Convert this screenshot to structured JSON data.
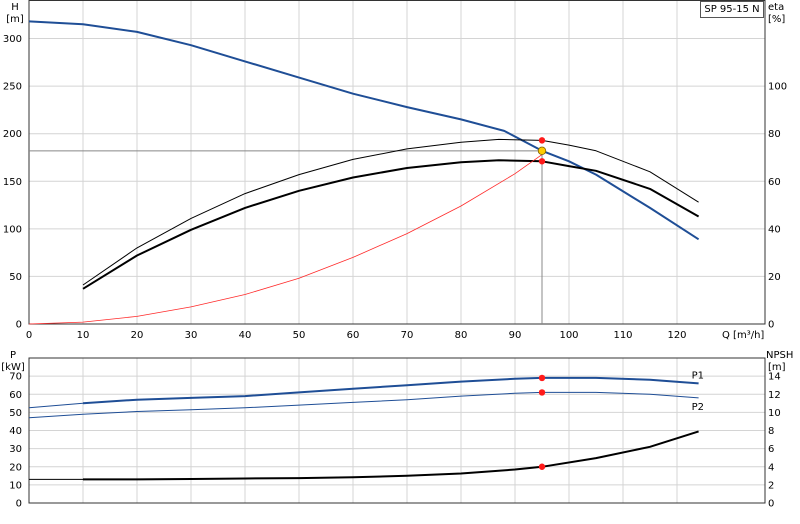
{
  "model_label": "SP 95-15 N",
  "chart_data": [
    {
      "type": "line",
      "name": "pump-curves",
      "y_left": {
        "label": "H",
        "unit": "[m]",
        "range": [
          0,
          340
        ],
        "ticks": [
          0,
          50,
          100,
          150,
          200,
          250,
          300
        ]
      },
      "y_right": {
        "label": "eta",
        "unit": "[%]",
        "ticks": [
          0,
          20,
          40,
          60,
          80,
          100
        ],
        "ratio_to_left": 2.5
      },
      "x_axis": {
        "label": "Q [m³/h]",
        "range": [
          0,
          124
        ],
        "ticks": [
          0,
          10,
          20,
          30,
          40,
          50,
          60,
          70,
          80,
          90,
          100,
          110,
          120
        ]
      },
      "grid": true,
      "series": [
        {
          "key": "H",
          "color": "#1f4e96",
          "width": 2,
          "points": [
            [
              0,
              318
            ],
            [
              10,
              315
            ],
            [
              20,
              307
            ],
            [
              30,
              293
            ],
            [
              40,
              276
            ],
            [
              50,
              259
            ],
            [
              60,
              242
            ],
            [
              70,
              228
            ],
            [
              80,
              215
            ],
            [
              88,
              203
            ],
            [
              95,
              182
            ],
            [
              100,
              171
            ],
            [
              105,
              157
            ],
            [
              115,
              122
            ],
            [
              124,
              89
            ]
          ]
        },
        {
          "key": "eta_thick",
          "color": "#000000",
          "width": 2,
          "points": [
            [
              10,
              37
            ],
            [
              20,
              72
            ],
            [
              30,
              99
            ],
            [
              40,
              122
            ],
            [
              50,
              140
            ],
            [
              60,
              154
            ],
            [
              70,
              164
            ],
            [
              80,
              170
            ],
            [
              87,
              172
            ],
            [
              95,
              171
            ],
            [
              100,
              166
            ],
            [
              105,
              161
            ],
            [
              115,
              142
            ],
            [
              124,
              113
            ]
          ]
        },
        {
          "key": "eta_thin",
          "color": "#000000",
          "width": 1,
          "points": [
            [
              10,
              41
            ],
            [
              20,
              80
            ],
            [
              30,
              111
            ],
            [
              40,
              137
            ],
            [
              50,
              157
            ],
            [
              60,
              173
            ],
            [
              70,
              184
            ],
            [
              80,
              191
            ],
            [
              87,
              194
            ],
            [
              95,
              193
            ],
            [
              100,
              188
            ],
            [
              105,
              182
            ],
            [
              115,
              160
            ],
            [
              124,
              128
            ]
          ]
        },
        {
          "key": "system",
          "color": "#ff2a2a",
          "width": 0.8,
          "points": [
            [
              0,
              0
            ],
            [
              10,
              2
            ],
            [
              20,
              8
            ],
            [
              30,
              18
            ],
            [
              40,
              31
            ],
            [
              50,
              48
            ],
            [
              60,
              70
            ],
            [
              70,
              95
            ],
            [
              80,
              124
            ],
            [
              90,
              158
            ],
            [
              95,
              178
            ]
          ]
        }
      ],
      "duty_point": {
        "q": 95,
        "h": 182
      },
      "markers": [
        [
          95,
          193
        ],
        [
          95,
          171
        ]
      ]
    },
    {
      "type": "line",
      "name": "power-npsh",
      "y_left": {
        "label": "P",
        "unit": "[kW]",
        "range": [
          0,
          80
        ],
        "ticks": [
          0,
          10,
          20,
          30,
          40,
          50,
          60,
          70
        ]
      },
      "y_right": {
        "label": "NPSH",
        "unit": "[m]",
        "range": [
          0,
          16
        ],
        "ticks": [
          0,
          2,
          4,
          6,
          8,
          10,
          12,
          14
        ]
      },
      "x_axis": {
        "range": [
          0,
          124
        ],
        "ticks": [
          0,
          10,
          20,
          30,
          40,
          50,
          60,
          70,
          80,
          90,
          100,
          110,
          120
        ]
      },
      "grid": true,
      "series": [
        {
          "key": "P1",
          "name": "P1",
          "color": "#1f4e96",
          "width": 2,
          "points": [
            [
              10,
              55
            ],
            [
              20,
              57
            ],
            [
              30,
              58
            ],
            [
              40,
              59
            ],
            [
              50,
              61
            ],
            [
              60,
              63
            ],
            [
              70,
              65
            ],
            [
              80,
              67
            ],
            [
              90,
              68.5
            ],
            [
              95,
              69
            ],
            [
              105,
              69
            ],
            [
              115,
              68
            ],
            [
              124,
              66
            ]
          ]
        },
        {
          "key": "P2",
          "name": "P2",
          "color": "#1f4e96",
          "width": 1,
          "points": [
            [
              10,
              49
            ],
            [
              20,
              50.5
            ],
            [
              30,
              51.5
            ],
            [
              40,
              52.5
            ],
            [
              50,
              54
            ],
            [
              60,
              55.5
            ],
            [
              70,
              57
            ],
            [
              80,
              59
            ],
            [
              90,
              60.5
            ],
            [
              95,
              61
            ],
            [
              105,
              61
            ],
            [
              115,
              60
            ],
            [
              124,
              58
            ]
          ]
        },
        {
          "key": "NPSH",
          "color": "#000000",
          "width": 2,
          "axis": "right",
          "points": [
            [
              10,
              2.6
            ],
            [
              20,
              2.6
            ],
            [
              30,
              2.65
            ],
            [
              40,
              2.7
            ],
            [
              50,
              2.75
            ],
            [
              60,
              2.85
            ],
            [
              70,
              3.0
            ],
            [
              80,
              3.25
            ],
            [
              90,
              3.7
            ],
            [
              95,
              4.0
            ],
            [
              105,
              4.95
            ],
            [
              115,
              6.2
            ],
            [
              124,
              7.9
            ]
          ]
        }
      ],
      "extensions": [
        {
          "color": "#1f4e96",
          "width": 1,
          "axis": "left",
          "points": [
            [
              0,
              52.5
            ],
            [
              10,
              55
            ]
          ]
        },
        {
          "color": "#1f4e96",
          "width": 1,
          "axis": "left",
          "points": [
            [
              0,
              47
            ],
            [
              10,
              49
            ]
          ]
        },
        {
          "color": "#000000",
          "width": 1,
          "axis": "right",
          "points": [
            [
              0,
              2.6
            ],
            [
              10,
              2.6
            ]
          ]
        }
      ],
      "markers_left": [
        [
          95,
          69
        ],
        [
          95,
          61
        ]
      ],
      "markers_right": [
        [
          95,
          4.0
        ]
      ]
    }
  ]
}
